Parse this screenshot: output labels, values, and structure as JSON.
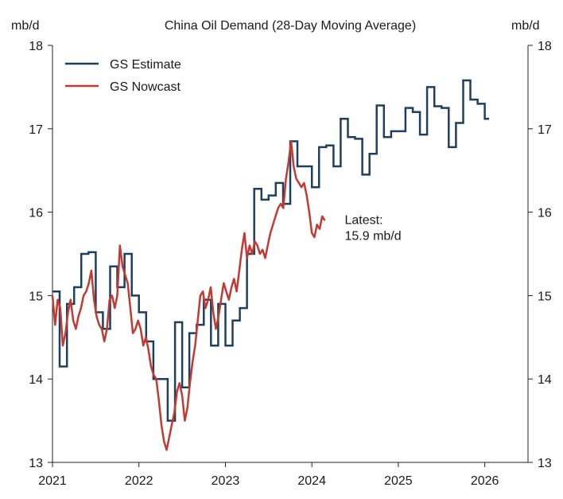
{
  "chart_data": {
    "type": "line",
    "title": "China Oil Demand (28-Day Moving Average)",
    "y_unit_left": "mb/d",
    "y_unit_right": "mb/d",
    "ylim": [
      13,
      18
    ],
    "yticks": [
      13,
      14,
      15,
      16,
      17,
      18
    ],
    "xlim": [
      2021,
      2026.5
    ],
    "xticks": [
      2021,
      2022,
      2023,
      2024,
      2025,
      2026
    ],
    "grid": false,
    "legend_position": "top-left",
    "annotation": {
      "line1": "Latest:",
      "line2": "15.9 mb/d",
      "x": 2024.38,
      "y": 15.8
    },
    "series": [
      {
        "name": "GS Estimate",
        "color": "#1f3f5f",
        "step": true,
        "x": [
          2021.0,
          2021.083,
          2021.167,
          2021.25,
          2021.333,
          2021.417,
          2021.5,
          2021.583,
          2021.667,
          2021.75,
          2021.833,
          2021.917,
          2022.0,
          2022.083,
          2022.167,
          2022.25,
          2022.333,
          2022.417,
          2022.5,
          2022.583,
          2022.667,
          2022.75,
          2022.833,
          2022.917,
          2023.0,
          2023.083,
          2023.167,
          2023.25,
          2023.333,
          2023.417,
          2023.5,
          2023.583,
          2023.667,
          2023.75,
          2023.833,
          2023.917,
          2024.0,
          2024.083,
          2024.167,
          2024.25,
          2024.333,
          2024.417,
          2024.5,
          2024.583,
          2024.667,
          2024.75,
          2024.833,
          2024.917,
          2025.0,
          2025.083,
          2025.167,
          2025.25,
          2025.333,
          2025.417,
          2025.5,
          2025.583,
          2025.667,
          2025.75,
          2025.833,
          2025.917,
          2026.0
        ],
        "values": [
          15.05,
          14.15,
          14.9,
          15.1,
          15.5,
          15.52,
          14.8,
          14.6,
          15.35,
          15.1,
          15.5,
          15.0,
          14.8,
          14.45,
          14.0,
          14.0,
          13.5,
          14.68,
          13.9,
          14.55,
          14.65,
          14.95,
          14.4,
          14.9,
          14.4,
          14.7,
          14.85,
          15.5,
          16.28,
          16.15,
          16.2,
          16.35,
          16.1,
          16.85,
          16.55,
          16.55,
          16.3,
          16.78,
          16.8,
          16.55,
          17.12,
          16.9,
          16.88,
          16.45,
          16.7,
          17.28,
          16.9,
          16.97,
          16.97,
          17.25,
          17.2,
          16.93,
          17.5,
          17.27,
          17.25,
          16.78,
          17.07,
          17.58,
          17.35,
          17.3,
          17.12
        ]
      },
      {
        "name": "GS Nowcast",
        "color": "#c23a32",
        "step": false,
        "x": [
          2021.0,
          2021.03,
          2021.06,
          2021.09,
          2021.12,
          2021.15,
          2021.18,
          2021.21,
          2021.24,
          2021.27,
          2021.3,
          2021.33,
          2021.36,
          2021.39,
          2021.42,
          2021.45,
          2021.48,
          2021.51,
          2021.54,
          2021.57,
          2021.6,
          2021.63,
          2021.66,
          2021.69,
          2021.72,
          2021.75,
          2021.78,
          2021.81,
          2021.84,
          2021.87,
          2021.9,
          2021.93,
          2021.96,
          2021.99,
          2022.02,
          2022.05,
          2022.08,
          2022.11,
          2022.14,
          2022.17,
          2022.2,
          2022.23,
          2022.26,
          2022.29,
          2022.32,
          2022.35,
          2022.38,
          2022.41,
          2022.44,
          2022.47,
          2022.5,
          2022.53,
          2022.56,
          2022.59,
          2022.62,
          2022.65,
          2022.68,
          2022.71,
          2022.74,
          2022.77,
          2022.8,
          2022.83,
          2022.86,
          2022.89,
          2022.92,
          2022.95,
          2022.98,
          2023.01,
          2023.04,
          2023.07,
          2023.1,
          2023.13,
          2023.16,
          2023.19,
          2023.22,
          2023.25,
          2023.28,
          2023.31,
          2023.34,
          2023.37,
          2023.4,
          2023.43,
          2023.46,
          2023.49,
          2023.52,
          2023.55,
          2023.58,
          2023.61,
          2023.64,
          2023.67,
          2023.7,
          2023.73,
          2023.76,
          2023.79,
          2023.82,
          2023.85,
          2023.88,
          2023.91,
          2023.94,
          2023.97,
          2024.0,
          2024.03,
          2024.06,
          2024.09,
          2024.12,
          2024.15
        ],
        "values": [
          15.0,
          14.65,
          14.95,
          14.85,
          14.4,
          14.55,
          14.8,
          14.95,
          14.7,
          14.6,
          14.75,
          14.85,
          15.0,
          15.05,
          15.15,
          15.3,
          14.95,
          14.75,
          14.65,
          14.6,
          14.45,
          14.6,
          14.95,
          15.0,
          14.85,
          15.0,
          15.6,
          15.35,
          15.25,
          15.15,
          14.85,
          14.55,
          14.6,
          14.7,
          14.6,
          14.4,
          14.5,
          14.35,
          14.15,
          14.05,
          14.0,
          13.75,
          13.45,
          13.25,
          13.15,
          13.3,
          13.45,
          13.6,
          13.85,
          13.95,
          13.8,
          13.5,
          13.65,
          13.95,
          14.2,
          14.4,
          14.7,
          15.0,
          15.05,
          14.85,
          14.95,
          15.1,
          14.8,
          14.6,
          14.75,
          14.95,
          15.15,
          15.05,
          14.95,
          15.1,
          15.2,
          15.05,
          15.3,
          15.55,
          15.75,
          15.45,
          15.6,
          15.5,
          15.65,
          15.6,
          15.5,
          15.55,
          15.45,
          15.6,
          15.75,
          15.85,
          15.95,
          16.05,
          16.1,
          16.05,
          16.4,
          16.6,
          16.85,
          16.55,
          16.4,
          16.35,
          16.3,
          16.35,
          16.2,
          16.0,
          15.75,
          15.7,
          15.85,
          15.8,
          15.95,
          15.9
        ]
      }
    ]
  }
}
